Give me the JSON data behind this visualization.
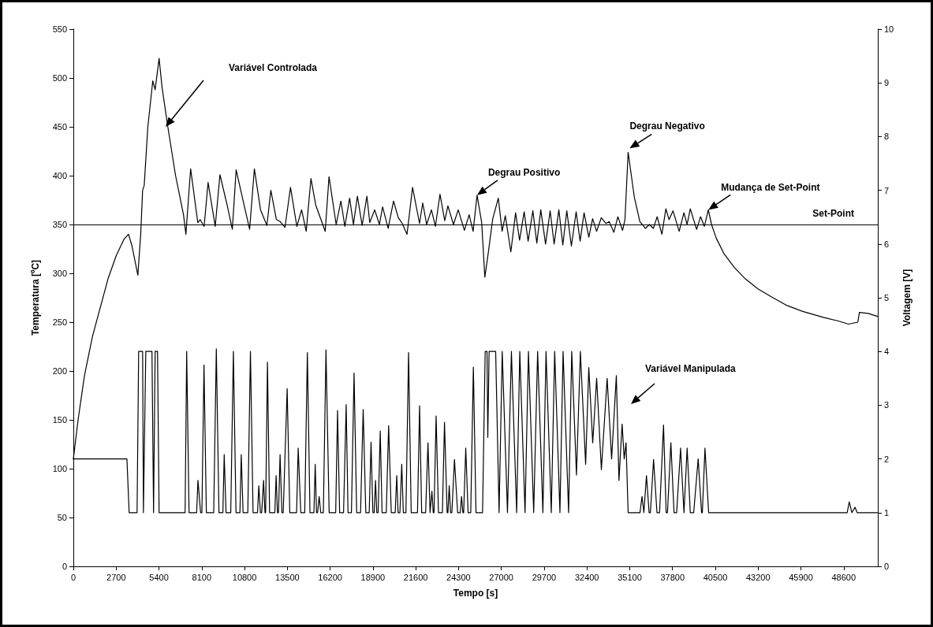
{
  "chart_data": {
    "type": "line",
    "xlabel": "Tempo [s]",
    "ylabel": "Temperatura [ºC]",
    "y2label": "Voltagem [V]",
    "xlim": [
      0,
      50750
    ],
    "xticks": [
      0,
      2700,
      5400,
      8100,
      10800,
      13500,
      16200,
      18900,
      21600,
      24300,
      27000,
      29700,
      32400,
      35100,
      37800,
      40500,
      43200,
      45900,
      48600
    ],
    "ylim": [
      0,
      550
    ],
    "yticks": [
      0,
      50,
      100,
      150,
      200,
      250,
      300,
      350,
      400,
      450,
      500,
      550
    ],
    "y2lim": [
      0,
      10
    ],
    "y2ticks": [
      0,
      1,
      2,
      3,
      4,
      5,
      6,
      7,
      8,
      9,
      10
    ],
    "grid": false,
    "marker": "none",
    "line_style": "solid",
    "series": [
      {
        "color": "#000000",
        "x": [
          0,
          300,
          700,
          1200,
          1700,
          2200,
          2700,
          3200,
          3480,
          3700,
          4070,
          4250,
          4370,
          4470,
          4700,
          5010,
          5160,
          5410,
          5600,
          5960,
          6450,
          6950,
          7100,
          7400,
          7850,
          8000,
          8250,
          8500,
          8950,
          9250,
          9700,
          10030,
          10270,
          10770,
          11120,
          11420,
          11810,
          12210,
          12460,
          12810,
          13050,
          13350,
          13700,
          14100,
          14400,
          14690,
          14990,
          15290,
          15890,
          16130,
          16580,
          16880,
          17130,
          17430,
          17670,
          17920,
          18220,
          18520,
          18700,
          19010,
          19310,
          19510,
          19860,
          20200,
          20500,
          20750,
          21050,
          21400,
          21840,
          22040,
          22290,
          22590,
          22840,
          23130,
          23430,
          23630,
          23980,
          24280,
          24670,
          24970,
          25220,
          25470,
          25760,
          25960,
          26160,
          26460,
          26810,
          27050,
          27250,
          27600,
          27900,
          28150,
          28440,
          28690,
          28990,
          29240,
          29490,
          29790,
          30080,
          30330,
          30630,
          30880,
          31130,
          31420,
          31720,
          31970,
          32220,
          32520,
          32760,
          33010,
          33310,
          33610,
          33800,
          34100,
          34350,
          34650,
          34800,
          35000,
          35390,
          35740,
          36090,
          36340,
          36590,
          36830,
          37130,
          37380,
          37580,
          37830,
          38220,
          38520,
          38720,
          38920,
          39320,
          39570,
          39810,
          40060,
          40260,
          40560,
          41050,
          41700,
          42350,
          43190,
          44030,
          45030,
          46020,
          47310,
          48300,
          48900,
          49490,
          49590,
          50140,
          50730
        ],
        "values": [
          110,
          150,
          195,
          235,
          265,
          295,
          318,
          335,
          340,
          328,
          298,
          340,
          385,
          390,
          450,
          497,
          488,
          520,
          490,
          450,
          400,
          360,
          340,
          407,
          352,
          355,
          348,
          393,
          348,
          401,
          370,
          345,
          406,
          370,
          345,
          407,
          365,
          349,
          385,
          355,
          353,
          347,
          388,
          348,
          365,
          343,
          397,
          370,
          343,
          399,
          350,
          374,
          348,
          377,
          350,
          379,
          349,
          379,
          352,
          365,
          350,
          368,
          346,
          374,
          357,
          351,
          340,
          388,
          351,
          372,
          350,
          365,
          348,
          381,
          354,
          369,
          350,
          365,
          344,
          360,
          343,
          380,
          352,
          296,
          319,
          356,
          377,
          343,
          359,
          322,
          362,
          334,
          363,
          333,
          364,
          331,
          365,
          330,
          364,
          330,
          365,
          329,
          364,
          328,
          363,
          333,
          362,
          337,
          356,
          343,
          357,
          351,
          353,
          342,
          358,
          344,
          355,
          424,
          378,
          353,
          346,
          350,
          346,
          358,
          340,
          366,
          355,
          364,
          343,
          362,
          350,
          366,
          345,
          358,
          348,
          365,
          350,
          336,
          320,
          306,
          295,
          284,
          276,
          267,
          261,
          255,
          251,
          248,
          250,
          260,
          259,
          256
        ]
      },
      {
        "color": "#000000",
        "axis": "y2",
        "x": [
          0,
          3380,
          3520,
          4020,
          4120,
          4370,
          4420,
          4570,
          4960,
          5060,
          5160,
          5310,
          5410,
          7050,
          7150,
          7300,
          7779,
          7862,
          8027,
          8110,
          8242,
          8391,
          8855,
          9020,
          9186,
          9434,
          9517,
          9632,
          9930,
          10096,
          10261,
          10510,
          10592,
          10708,
          11006,
          11172,
          11337,
          11618,
          11701,
          11800,
          11883,
          11999,
          12090,
          12130,
          12247,
          12380,
          12710,
          12793,
          12876,
          12943,
          13042,
          13158,
          13240,
          13489,
          13654,
          14084,
          14184,
          14349,
          14597,
          14763,
          14928,
          15177,
          15259,
          15342,
          15408,
          15508,
          15607,
          15772,
          15938,
          16137,
          16551,
          16667,
          16799,
          17047,
          17212,
          17328,
          17543,
          17709,
          17874,
          18119,
          18285,
          18450,
          18665,
          18781,
          18897,
          18980,
          19063,
          19145,
          19228,
          19361,
          19476,
          19741,
          19890,
          20056,
          20304,
          20403,
          20486,
          20602,
          20718,
          20817,
          20982,
          21148,
          21313,
          21711,
          21843,
          21975,
          22224,
          22373,
          22505,
          22538,
          22621,
          22704,
          22753,
          22886,
          23035,
          23283,
          23415,
          23581,
          23631,
          23713,
          23796,
          23879,
          24044,
          24243,
          24408,
          24491,
          24574,
          24624,
          24756,
          24905,
          25070,
          25236,
          25401,
          25815,
          25981,
          26097,
          26146,
          26229,
          26643,
          26858,
          27057,
          27388,
          27636,
          27967,
          28165,
          28496,
          28711,
          29042,
          29290,
          29622,
          29820,
          30151,
          30366,
          30697,
          30896,
          31244,
          31442,
          31740,
          31988,
          32319,
          32518,
          32766,
          33014,
          33312,
          33676,
          33958,
          34256,
          34421,
          34620,
          34752,
          34868,
          35000,
          35745,
          35877,
          35993,
          36157,
          36322,
          36405,
          36604,
          36819,
          36984,
          37233,
          37398,
          37481,
          37696,
          37895,
          38060,
          38308,
          38523,
          38556,
          38722,
          38921,
          39136,
          39417,
          39632,
          39682,
          39847,
          40079,
          48818,
          48950,
          49116,
          49314,
          49447,
          50721
        ],
        "values": [
          2,
          2,
          1,
          1,
          4,
          4,
          1,
          4,
          4,
          1,
          4,
          4,
          1,
          1,
          4,
          1,
          1,
          1.6,
          1,
          1,
          3.75,
          1,
          1,
          4.05,
          1,
          1,
          2.08,
          1,
          1,
          4,
          1,
          1,
          2.08,
          1,
          1,
          4,
          1,
          1,
          1.5,
          1,
          1,
          1.6,
          1,
          1,
          3.8,
          1,
          1,
          1.69,
          1,
          1,
          2.08,
          1,
          1,
          3.31,
          1,
          1,
          2.2,
          1,
          1,
          3.98,
          1,
          1,
          1.9,
          1,
          1,
          1.3,
          1,
          1,
          4.03,
          1,
          1,
          2.9,
          1,
          1,
          3.01,
          1,
          1,
          3.6,
          1,
          1,
          2.92,
          1,
          1,
          2.31,
          1,
          1,
          1.6,
          1,
          1,
          2.52,
          1,
          1,
          2.62,
          1,
          1,
          1.69,
          1,
          1,
          1.9,
          1,
          1,
          3.98,
          1,
          1,
          2.99,
          1,
          1,
          2.3,
          1,
          1,
          1.4,
          1,
          1,
          2.8,
          1,
          1,
          2.68,
          1,
          1,
          1.5,
          1,
          1,
          1.99,
          1,
          1,
          1.3,
          1,
          1,
          2.2,
          1,
          1,
          3.71,
          1,
          1,
          4,
          4,
          2.4,
          4,
          4,
          1,
          4,
          1,
          4,
          1,
          4,
          1,
          4,
          1,
          4,
          1,
          4,
          1,
          4,
          1,
          4,
          1,
          4,
          1.7,
          4,
          1.9,
          3.7,
          2.3,
          3.5,
          1.8,
          3.5,
          2,
          3.55,
          1.6,
          2.65,
          2,
          2.3,
          1,
          1,
          1.3,
          1,
          1.69,
          1,
          1,
          1.99,
          1,
          1,
          2.63,
          1,
          1,
          2.3,
          1,
          1,
          2.2,
          1,
          1,
          2.2,
          1,
          1,
          2,
          1,
          1,
          2.2,
          1,
          1,
          1.2,
          1,
          1.1,
          1,
          1
        ]
      }
    ],
    "ref_lines": [
      {
        "axis": "y",
        "value": 350,
        "label": "Set-Point",
        "color": "#000000",
        "line_style": "solid"
      }
    ],
    "annotations": [
      "Variável Controlada",
      {
        "text": "Degrau Positivo",
        "x": 25470,
        "y": 380
      },
      {
        "text": "Degrau Negativo",
        "x": 35097,
        "y": 428
      },
      {
        "text": "Mudança de Set-Point",
        "x": 40060,
        "y": 365
      },
      "Variável Manipulada"
    ]
  }
}
